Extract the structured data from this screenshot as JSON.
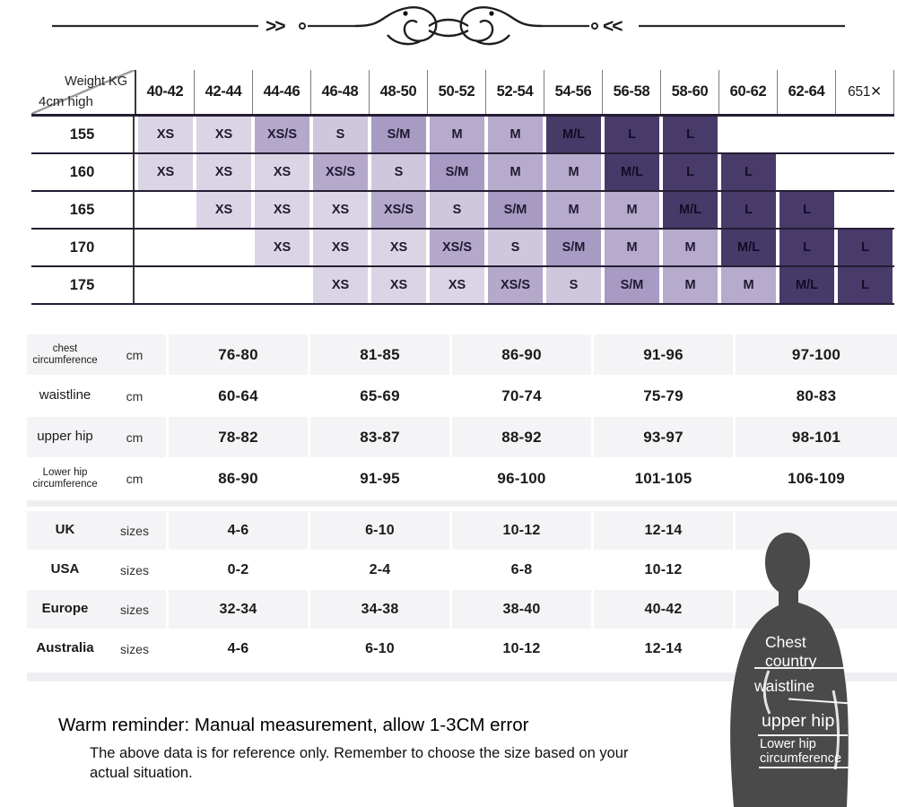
{
  "divider": {
    "left_mark": ">>",
    "right_mark": "<<"
  },
  "size_matrix": {
    "corner_top": "Weight KG",
    "corner_bottom": "4cm high",
    "columns": [
      "40-42",
      "42-44",
      "44-46",
      "46-48",
      "48-50",
      "50-52",
      "52-54",
      "54-56",
      "56-58",
      "58-60",
      "60-62",
      "62-64",
      "651✕"
    ],
    "rows": [
      {
        "height": "155",
        "cells": [
          "XS",
          "XS",
          "XS/S",
          "S",
          "S/M",
          "M",
          "M",
          "M/L",
          "L",
          "L",
          "",
          "",
          ""
        ]
      },
      {
        "height": "160",
        "cells": [
          "XS",
          "XS",
          "XS",
          "XS/S",
          "S",
          "S/M",
          "M",
          "M",
          "M/L",
          "L",
          "L",
          "",
          ""
        ]
      },
      {
        "height": "165",
        "cells": [
          "",
          "XS",
          "XS",
          "XS",
          "XS/S",
          "S",
          "S/M",
          "M",
          "M",
          "M/L",
          "L",
          "L",
          ""
        ]
      },
      {
        "height": "170",
        "cells": [
          "",
          "",
          "XS",
          "XS",
          "XS",
          "XS/S",
          "S",
          "S/M",
          "M",
          "M",
          "M/L",
          "L",
          "L"
        ]
      },
      {
        "height": "175",
        "cells": [
          "",
          "",
          "",
          "XS",
          "XS",
          "XS",
          "XS/S",
          "S",
          "S/M",
          "M",
          "M",
          "M/L",
          "L"
        ]
      }
    ],
    "size_colors": {
      "XS": "#dad4e4",
      "XS/S": "#b4a8cb",
      "S": "#cfc7dd",
      "S/M": "#a79ac3",
      "M": "#b6aacd",
      "M/L": "#463a68",
      "L": "#483b6a"
    },
    "dark_sizes": [
      "M/L",
      "L"
    ]
  },
  "measurements": {
    "unit": "cm",
    "rows": [
      {
        "label": "chest\ncircumference",
        "small": true,
        "values": [
          "76-80",
          "81-85",
          "86-90",
          "91-96",
          "97-100"
        ]
      },
      {
        "label": "waistline",
        "small": false,
        "values": [
          "60-64",
          "65-69",
          "70-74",
          "75-79",
          "80-83"
        ]
      },
      {
        "label": "upper hip",
        "small": false,
        "values": [
          "78-82",
          "83-87",
          "88-92",
          "93-97",
          "98-101"
        ]
      },
      {
        "label": "Lower hip\ncircumference",
        "small": true,
        "values": [
          "86-90",
          "91-95",
          "96-100",
          "101-105",
          "106-109"
        ]
      }
    ]
  },
  "region_sizes": {
    "unit": "sizes",
    "rows": [
      {
        "label": "UK",
        "values": [
          "4-6",
          "6-10",
          "10-12",
          "12-14"
        ]
      },
      {
        "label": "USA",
        "values": [
          "0-2",
          "2-4",
          "6-8",
          "10-12"
        ]
      },
      {
        "label": "Europe",
        "values": [
          "32-34",
          "34-38",
          "38-40",
          "40-42"
        ]
      },
      {
        "label": "Australia",
        "values": [
          "4-6",
          "6-10",
          "10-12",
          "12-14"
        ]
      }
    ]
  },
  "figure": {
    "silhouette_color": "#4a4a4a",
    "labels": {
      "chest": "Chest\ncountry",
      "waistline": "waistline",
      "upper_hip": "upper hip",
      "lower_hip": "Lower hip\ncircumference"
    }
  },
  "footer": {
    "title": "Warm reminder: Manual measurement, allow 1-3CM error",
    "note": "The above data is for reference only. Remember to choose the size based on your actual situation."
  }
}
